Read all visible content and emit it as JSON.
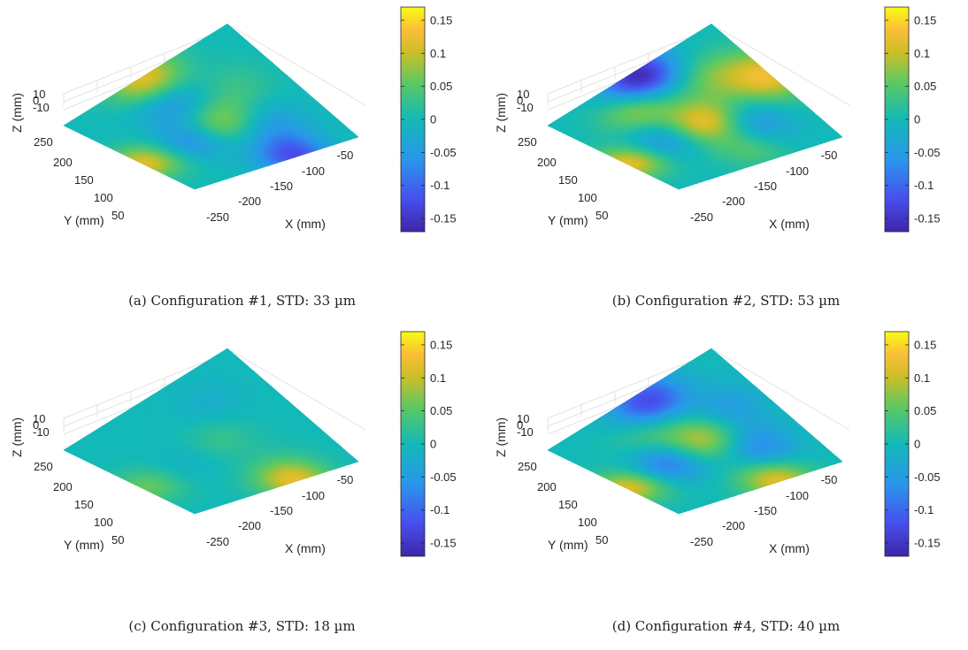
{
  "chart_data": [
    {
      "type": "surface",
      "caption": "(a) Configuration #1, STD: 33 µm",
      "xlabel": "X (mm)",
      "ylabel": "Y (mm)",
      "zlabel": "Z (mm)",
      "xticks": [
        "-250",
        "-200",
        "-150",
        "-100",
        "-50"
      ],
      "yticks": [
        "250",
        "200",
        "150",
        "100",
        "50"
      ],
      "zticks": [
        "10",
        "0",
        "-10"
      ],
      "colorbar": {
        "ticks": [
          "0.15",
          "0.1",
          "0.05",
          "0",
          "-0.05",
          "-0.1",
          "-0.15"
        ],
        "range": [
          -0.17,
          0.17
        ]
      },
      "features": [
        {
          "u": 0.52,
          "v": 0.45,
          "value": 0.09
        },
        {
          "u": 0.3,
          "v": 0.42,
          "value": -0.08
        },
        {
          "u": 0.45,
          "v": 0.72,
          "value": -0.06
        },
        {
          "u": 0.7,
          "v": 0.3,
          "value": -0.05
        },
        {
          "u": 0.75,
          "v": 0.62,
          "value": 0.03
        },
        {
          "u": 0.02,
          "v": 0.4,
          "value": 0.12
        },
        {
          "u": 0.48,
          "v": 0.98,
          "value": 0.12
        },
        {
          "u": 0.62,
          "v": 0.02,
          "value": -0.12
        }
      ]
    },
    {
      "type": "surface",
      "caption": "(b) Configuration #2, STD: 53 µm",
      "xlabel": "X (mm)",
      "ylabel": "Y (mm)",
      "zlabel": "Z (mm)",
      "xticks": [
        "-250",
        "-200",
        "-150",
        "-100",
        "-50"
      ],
      "yticks": [
        "250",
        "200",
        "150",
        "100",
        "50"
      ],
      "zticks": [
        "10",
        "0",
        "-10"
      ],
      "colorbar": {
        "ticks": [
          "0.15",
          "0.1",
          "0.05",
          "0",
          "-0.05",
          "-0.1",
          "-0.15"
        ],
        "range": [
          -0.17,
          0.17
        ]
      },
      "features": [
        {
          "u": 0.52,
          "v": 0.45,
          "value": 0.13
        },
        {
          "u": 0.52,
          "v": 0.95,
          "value": -0.17
        },
        {
          "u": 0.25,
          "v": 0.45,
          "value": -0.08
        },
        {
          "u": 0.35,
          "v": 0.75,
          "value": 0.08
        },
        {
          "u": 0.7,
          "v": 0.3,
          "value": -0.07
        },
        {
          "u": 0.78,
          "v": 0.7,
          "value": 0.06
        },
        {
          "u": 0.02,
          "v": 0.4,
          "value": 0.13
        },
        {
          "u": 0.98,
          "v": 0.55,
          "value": 0.12
        },
        {
          "u": 0.55,
          "v": 0.15,
          "value": 0.05
        }
      ]
    },
    {
      "type": "surface",
      "caption": "(c) Configuration #3, STD: 18 µm",
      "xlabel": "X (mm)",
      "ylabel": "Y (mm)",
      "zlabel": "Z (mm)",
      "xticks": [
        "-250",
        "-200",
        "-150",
        "-100",
        "-50"
      ],
      "yticks": [
        "250",
        "200",
        "150",
        "100",
        "50"
      ],
      "zticks": [
        "10",
        "0",
        "-10"
      ],
      "colorbar": {
        "ticks": [
          "0.15",
          "0.1",
          "0.05",
          "0",
          "-0.05",
          "-0.1",
          "-0.15"
        ],
        "range": [
          -0.17,
          0.17
        ]
      },
      "features": [
        {
          "u": 0.55,
          "v": 0.5,
          "value": 0.03
        },
        {
          "u": 0.3,
          "v": 0.45,
          "value": -0.02
        },
        {
          "u": 0.62,
          "v": 0.02,
          "value": 0.12
        },
        {
          "u": 0.02,
          "v": 0.4,
          "value": 0.06
        },
        {
          "u": 0.7,
          "v": 0.75,
          "value": -0.02
        }
      ]
    },
    {
      "type": "surface",
      "caption": "(d) Configuration #4, STD: 40 µm",
      "xlabel": "X (mm)",
      "ylabel": "Y (mm)",
      "zlabel": "Z (mm)",
      "xticks": [
        "-250",
        "-200",
        "-150",
        "-100",
        "-50"
      ],
      "yticks": [
        "250",
        "200",
        "150",
        "100",
        "50"
      ],
      "zticks": [
        "10",
        "0",
        "-10"
      ],
      "colorbar": {
        "ticks": [
          "0.15",
          "0.1",
          "0.05",
          "0",
          "-0.05",
          "-0.1",
          "-0.15"
        ],
        "range": [
          -0.17,
          0.17
        ]
      },
      "features": [
        {
          "u": 0.55,
          "v": 0.5,
          "value": 0.1
        },
        {
          "u": 0.28,
          "v": 0.45,
          "value": -0.1
        },
        {
          "u": 0.55,
          "v": 0.92,
          "value": -0.13
        },
        {
          "u": 0.72,
          "v": 0.28,
          "value": -0.08
        },
        {
          "u": 0.8,
          "v": 0.62,
          "value": -0.05
        },
        {
          "u": 0.02,
          "v": 0.4,
          "value": 0.12
        },
        {
          "u": 0.62,
          "v": 0.02,
          "value": 0.12
        },
        {
          "u": 0.4,
          "v": 0.72,
          "value": 0.04
        }
      ]
    }
  ]
}
